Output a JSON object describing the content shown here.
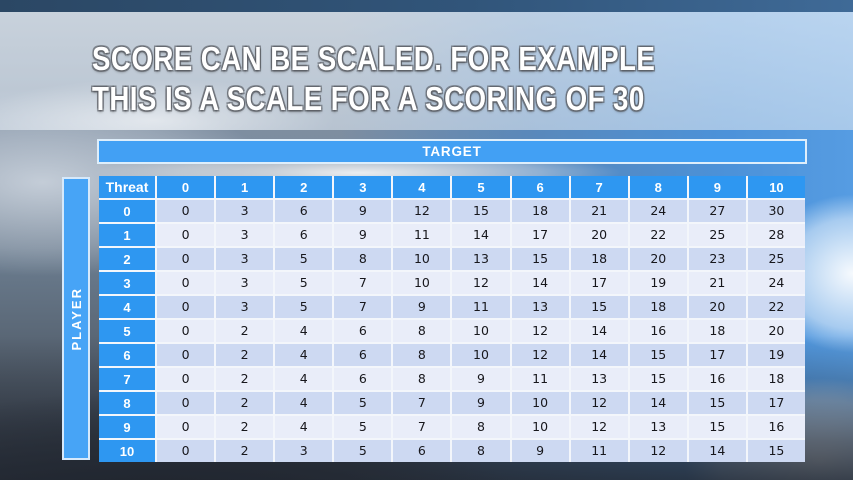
{
  "slide": {
    "title_line1": "SCORE CAN BE SCALED. FOR EXAMPLE",
    "title_line2": "THIS IS A SCALE FOR A SCORING OF 30"
  },
  "table": {
    "target_label": "TARGET",
    "player_label": "PLAYER",
    "corner_label": "Threat",
    "column_headers": [
      "0",
      "1",
      "2",
      "3",
      "4",
      "5",
      "6",
      "7",
      "8",
      "9",
      "10"
    ],
    "row_headers": [
      "0",
      "1",
      "2",
      "3",
      "4",
      "5",
      "6",
      "7",
      "8",
      "9",
      "10"
    ],
    "rows": [
      [
        0,
        3,
        6,
        9,
        12,
        15,
        18,
        21,
        24,
        27,
        30
      ],
      [
        0,
        3,
        6,
        9,
        11,
        14,
        17,
        20,
        22,
        25,
        28
      ],
      [
        0,
        3,
        5,
        8,
        10,
        13,
        15,
        18,
        20,
        23,
        25
      ],
      [
        0,
        3,
        5,
        7,
        10,
        12,
        14,
        17,
        19,
        21,
        24
      ],
      [
        0,
        3,
        5,
        7,
        9,
        11,
        13,
        15,
        18,
        20,
        22
      ],
      [
        0,
        2,
        4,
        6,
        8,
        10,
        12,
        14,
        16,
        18,
        20
      ],
      [
        0,
        2,
        4,
        6,
        8,
        10,
        12,
        14,
        15,
        17,
        19
      ],
      [
        0,
        2,
        4,
        6,
        8,
        9,
        11,
        13,
        15,
        16,
        18
      ],
      [
        0,
        2,
        4,
        5,
        7,
        9,
        10,
        12,
        14,
        15,
        17
      ],
      [
        0,
        2,
        4,
        5,
        7,
        8,
        10,
        12,
        13,
        15,
        16
      ],
      [
        0,
        2,
        3,
        5,
        6,
        8,
        9,
        11,
        12,
        14,
        15
      ]
    ]
  },
  "colors": {
    "header_blue": "#2e97f1",
    "target_bar_blue": "#42a0f4",
    "player_bar_blue": "#47a4f6",
    "band_dark": "#cdd9f2",
    "band_light": "#e9edf9",
    "cell_gap": "#f3f6fb",
    "body_text": "#17171c",
    "title_color": "#ffffff",
    "top_strip_blue": "#2b4764"
  }
}
